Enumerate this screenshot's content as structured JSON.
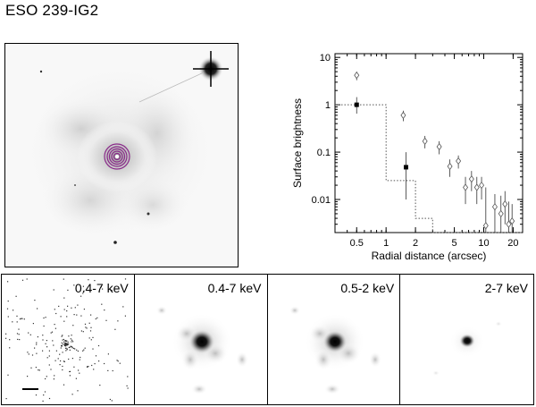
{
  "title": "ESO 239-IG2",
  "optical_image": {
    "description_icon": "galaxy-image",
    "contours_color": "#8a2a8a"
  },
  "panels": [
    {
      "band": "0.4-7 keV",
      "style": "raw-events"
    },
    {
      "band": "0.4-7 keV",
      "style": "smoothed"
    },
    {
      "band": "0.5-2 keV",
      "style": "smoothed"
    },
    {
      "band": "2-7 keV",
      "style": "smoothed-compact"
    }
  ],
  "chart_data": {
    "type": "scatter",
    "xlabel": "Radial distance (arcsec)",
    "ylabel": "Surface brightness",
    "xscale": "log",
    "yscale": "log",
    "xlim": [
      0.3,
      25
    ],
    "ylim": [
      0.002,
      12
    ],
    "x_ticks": [
      0.5,
      1,
      2,
      5,
      10,
      20
    ],
    "y_ticks": [
      0.01,
      0.1,
      1,
      10
    ],
    "y_tick_labels": [
      "0.01",
      "0.1",
      "1",
      "10"
    ],
    "x_tick_labels": [
      "0.5",
      "1",
      "2",
      "5",
      "10",
      "20"
    ],
    "series": [
      {
        "marker": "open-diamond",
        "points": [
          {
            "x": 0.5,
            "y": 4.2,
            "ylo": 3.3,
            "yhi": 5.0
          },
          {
            "x": 1.5,
            "y": 0.6,
            "ylo": 0.45,
            "yhi": 0.75
          },
          {
            "x": 2.5,
            "y": 0.17,
            "ylo": 0.12,
            "yhi": 0.22
          },
          {
            "x": 3.5,
            "y": 0.13,
            "ylo": 0.09,
            "yhi": 0.17
          },
          {
            "x": 4.5,
            "y": 0.05,
            "ylo": 0.03,
            "yhi": 0.07
          },
          {
            "x": 5.5,
            "y": 0.065,
            "ylo": 0.045,
            "yhi": 0.085
          },
          {
            "x": 6.5,
            "y": 0.018,
            "ylo": 0.008,
            "yhi": 0.03
          },
          {
            "x": 7.5,
            "y": 0.027,
            "ylo": 0.015,
            "yhi": 0.04
          },
          {
            "x": 8.5,
            "y": 0.018,
            "ylo": 0.008,
            "yhi": 0.03
          },
          {
            "x": 9.5,
            "y": 0.02,
            "ylo": 0.01,
            "yhi": 0.03
          },
          {
            "x": 10.5,
            "y": 0.0028,
            "ylo": 0.002,
            "yhi": 0.018
          },
          {
            "x": 13,
            "y": 0.007,
            "ylo": 0.002,
            "yhi": 0.013
          },
          {
            "x": 15,
            "y": 0.005,
            "ylo": 0.002,
            "yhi": 0.012
          },
          {
            "x": 16.5,
            "y": 0.008,
            "ylo": 0.003,
            "yhi": 0.015
          },
          {
            "x": 18,
            "y": 0.003,
            "ylo": 0.002,
            "yhi": 0.009
          },
          {
            "x": 19.5,
            "y": 0.0035,
            "ylo": 0.002,
            "yhi": 0.008
          }
        ]
      },
      {
        "marker": "filled-square",
        "points": [
          {
            "x": 0.5,
            "y": 1.0,
            "ylo": 0.65,
            "yhi": 1.45
          },
          {
            "x": 1.6,
            "y": 0.048,
            "ylo": 0.01,
            "yhi": 0.1
          }
        ]
      }
    ],
    "psf_step": [
      [
        0.3,
        1.0
      ],
      [
        1.0,
        1.0
      ],
      [
        1.0,
        0.025
      ],
      [
        2.0,
        0.025
      ],
      [
        2.0,
        0.004
      ],
      [
        3.0,
        0.004
      ],
      [
        3.0,
        0.002
      ],
      [
        25,
        0.002
      ]
    ]
  }
}
